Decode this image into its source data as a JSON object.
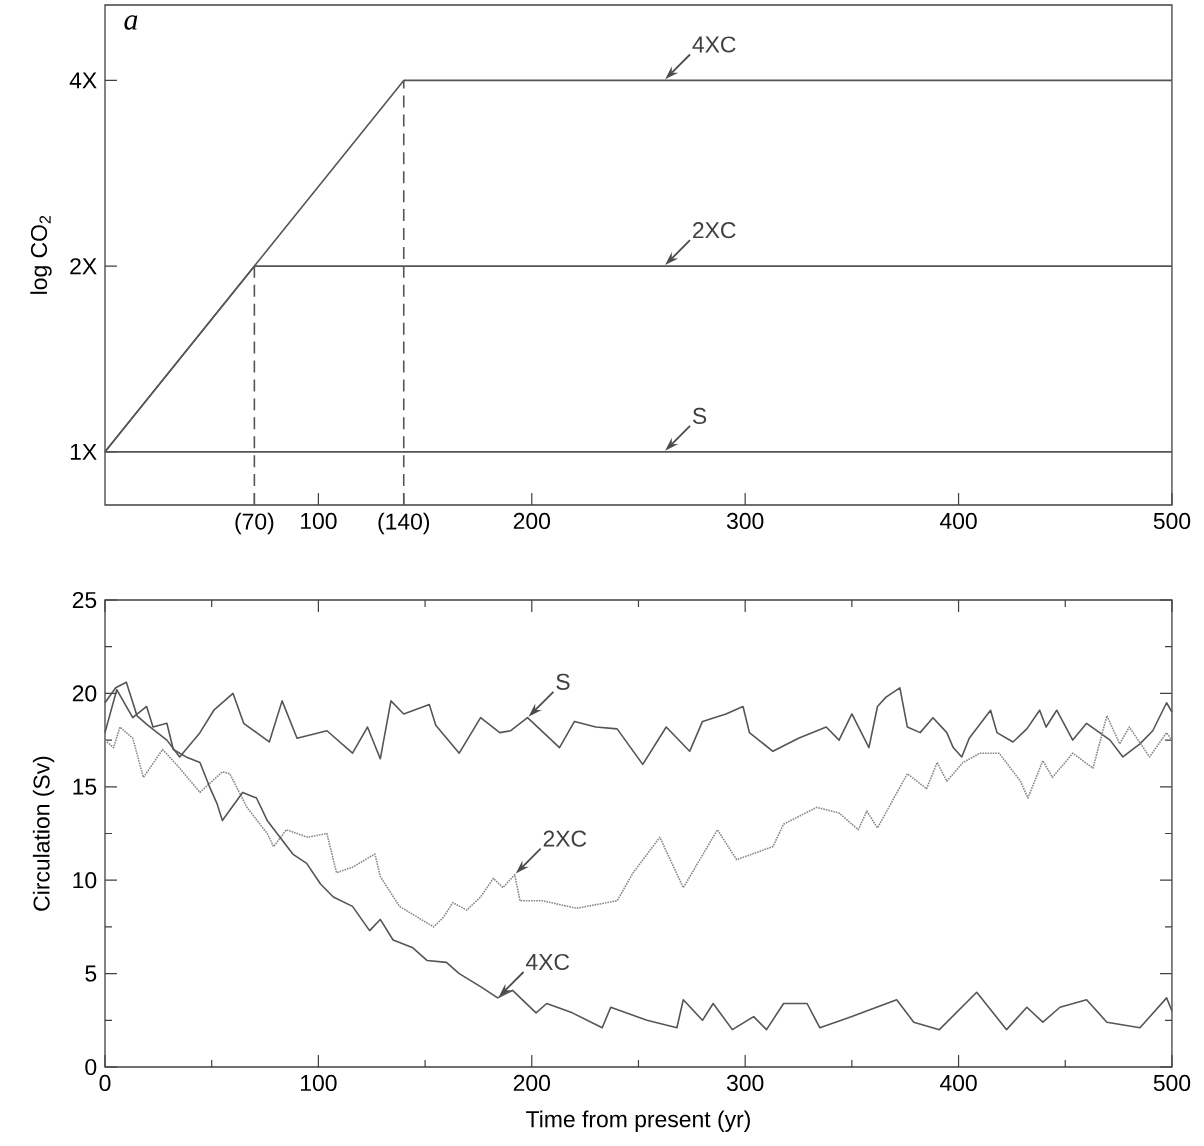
{
  "chart_data": [
    {
      "type": "line",
      "ylabel": "log CO$_{2}$",
      "log": "y",
      "xlim": [
        0,
        500
      ],
      "ylim": [
        0.82,
        5.3
      ],
      "xticks": [
        {
          "value": 70,
          "label": "(70)"
        },
        100,
        {
          "value": 140,
          "label": "(140)"
        },
        200,
        300,
        400,
        500
      ],
      "yticks": [
        {
          "value": 1,
          "label": "1X"
        },
        {
          "value": 2,
          "label": "2X"
        },
        {
          "value": 4,
          "label": "4X"
        }
      ],
      "annotations": [
        "a",
        {
          "text": "4XC",
          "x": 262,
          "y": 4
        },
        {
          "text": "2XC",
          "x": 262,
          "y": 2
        },
        {
          "text": "S",
          "x": 262,
          "y": 1
        }
      ],
      "series": [
        {
          "color": "#555555",
          "line_style": "solid",
          "x": [
            0,
            140,
            500
          ],
          "values": [
            1,
            4,
            4
          ]
        },
        {
          "color": "#555555",
          "line_style": "solid",
          "x": [
            0,
            70,
            500
          ],
          "values": [
            1,
            2,
            2
          ]
        },
        {
          "color": "#555555",
          "line_style": "solid",
          "x": [
            0,
            500
          ],
          "values": [
            1,
            1
          ]
        },
        {
          "color": "#555555",
          "line_style": "dashed",
          "x": [
            70,
            70
          ],
          "values": [
            0.82,
            2
          ]
        },
        {
          "color": "#555555",
          "line_style": "dashed",
          "x": [
            140,
            140
          ],
          "values": [
            0.82,
            4
          ]
        }
      ]
    },
    {
      "type": "line",
      "xlabel": "Time from present (yr)",
      "ylabel": "Circulation (Sv)",
      "xlim": [
        0,
        500
      ],
      "ylim": [
        0,
        25
      ],
      "xticks": [
        0,
        100,
        200,
        300,
        400,
        500
      ],
      "yticks": [
        0,
        5,
        10,
        15,
        20,
        25
      ],
      "annotations": [
        {
          "text": "S",
          "x": 198,
          "y": 18.7
        },
        {
          "text": "2XC",
          "x": 192,
          "y": 10.3
        },
        {
          "text": "4XC",
          "x": 184,
          "y": 3.7
        }
      ],
      "series": [
        {
          "color": "#555555",
          "line_style": "solid",
          "x": [
            0,
            5,
            10,
            15,
            20,
            29,
            35,
            44.5,
            51,
            60,
            65,
            77,
            83,
            90,
            104,
            116,
            123,
            129,
            134,
            140,
            152,
            155,
            166,
            176,
            185,
            190,
            198,
            213,
            220,
            230,
            240,
            252,
            263,
            274,
            280,
            291,
            299,
            302,
            313,
            325,
            338,
            344,
            350,
            358,
            362,
            366,
            372.5,
            376,
            382,
            388,
            394.5,
            397.5,
            401.5,
            405,
            415,
            418,
            425.5,
            432,
            438,
            441,
            446,
            453.5,
            460,
            471,
            477,
            485,
            491,
            497.5,
            500
          ],
          "values": [
            19.5,
            20.3,
            20.6,
            18.8,
            18.3,
            17.5,
            16.6,
            17.9,
            19.1,
            20.0,
            18.4,
            17.4,
            19.6,
            17.6,
            18.0,
            16.8,
            18.2,
            16.5,
            19.6,
            18.9,
            19.4,
            18.3,
            16.8,
            18.7,
            17.9,
            18.0,
            18.7,
            17.1,
            18.5,
            18.2,
            18.1,
            16.2,
            18.2,
            16.9,
            18.5,
            18.9,
            19.3,
            17.9,
            16.9,
            17.6,
            18.2,
            17.5,
            18.9,
            17.1,
            19.3,
            19.8,
            20.3,
            18.2,
            17.9,
            18.7,
            17.9,
            17.1,
            16.6,
            17.6,
            19.1,
            17.9,
            17.4,
            18.1,
            19.1,
            18.2,
            19.1,
            17.5,
            18.4,
            17.5,
            16.6,
            17.3,
            18.0,
            19.5,
            19.0
          ]
        },
        {
          "color": "#888888",
          "line_style": "dotted",
          "x": [
            0,
            4,
            7,
            13,
            18,
            27,
            35,
            44.5,
            55,
            58.5,
            66.5,
            76,
            79,
            85,
            95,
            104,
            108.5,
            116,
            126.5,
            129,
            138,
            154,
            158.5,
            163,
            169.5,
            176,
            182,
            186.5,
            192,
            194.5,
            205,
            221,
            240,
            247.5,
            260,
            271,
            287,
            296,
            313,
            318,
            333.5,
            344,
            353,
            357,
            362,
            376,
            385,
            390,
            394.5,
            402,
            410,
            419,
            429,
            432.5,
            439.5,
            444,
            453.5,
            463,
            469.5,
            475.5,
            480,
            489.5,
            497.5,
            500
          ],
          "values": [
            17.5,
            17.1,
            18.2,
            17.6,
            15.5,
            17.0,
            16.0,
            14.7,
            15.8,
            15.7,
            13.9,
            12.5,
            11.8,
            12.7,
            12.3,
            12.5,
            10.4,
            10.7,
            11.4,
            10.2,
            8.6,
            7.5,
            8.0,
            8.8,
            8.4,
            9.1,
            10.1,
            9.6,
            10.3,
            8.9,
            8.9,
            8.5,
            8.9,
            10.4,
            12.3,
            9.6,
            12.7,
            11.1,
            11.8,
            13.0,
            13.9,
            13.6,
            12.7,
            13.7,
            12.8,
            15.7,
            14.9,
            16.3,
            15.3,
            16.3,
            16.8,
            16.8,
            15.3,
            14.4,
            16.4,
            15.5,
            16.8,
            16.0,
            18.8,
            17.3,
            18.2,
            16.6,
            17.9,
            17.5
          ]
        },
        {
          "color": "#555555",
          "line_style": "solid",
          "x": [
            0,
            5.5,
            13,
            19.5,
            22.5,
            29,
            32,
            38,
            44.5,
            49,
            52.5,
            55,
            64.5,
            71,
            76,
            82,
            88,
            94.5,
            101,
            107,
            116,
            124,
            129,
            135,
            144,
            151,
            160,
            166,
            176,
            184,
            191,
            202,
            207,
            219,
            233,
            237,
            254,
            268,
            271,
            280,
            285,
            294,
            304,
            310,
            318,
            329,
            335,
            350,
            371,
            379,
            391,
            408.5,
            422.5,
            432,
            439.5,
            447.5,
            460,
            469.5,
            485,
            497.5,
            500
          ],
          "values": [
            17.9,
            20.2,
            18.7,
            19.3,
            18.2,
            18.4,
            17.0,
            16.6,
            16.3,
            15.0,
            14.1,
            13.2,
            14.7,
            14.4,
            13.2,
            12.3,
            11.4,
            10.9,
            9.8,
            9.1,
            8.6,
            7.3,
            7.9,
            6.8,
            6.4,
            5.7,
            5.6,
            5.0,
            4.3,
            3.7,
            4.1,
            2.9,
            3.4,
            2.9,
            2.1,
            3.2,
            2.5,
            2.1,
            3.6,
            2.5,
            3.4,
            2.0,
            2.7,
            2.0,
            3.4,
            3.4,
            2.1,
            2.7,
            3.6,
            2.4,
            2.0,
            4.0,
            2.0,
            3.2,
            2.4,
            3.2,
            3.6,
            2.4,
            2.1,
            3.7,
            3.0
          ]
        }
      ]
    }
  ]
}
